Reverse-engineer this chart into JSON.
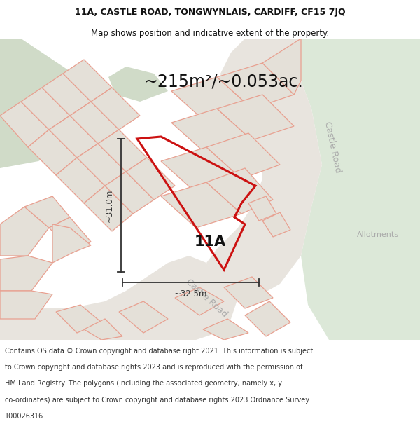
{
  "title_line1": "11A, CASTLE ROAD, TONGWYNLAIS, CARDIFF, CF15 7JQ",
  "title_line2": "Map shows position and indicative extent of the property.",
  "area_text": "~215m²/~0.053ac.",
  "label_11a": "11A",
  "dim_vertical": "~31.0m",
  "dim_horizontal": "~32.5m",
  "castle_road_label1": "Castle Road",
  "castle_road_label2": "Castle Road",
  "allotments_label": "Allotments",
  "footer_lines": [
    "Contains OS data © Crown copyright and database right 2021. This information is subject",
    "to Crown copyright and database rights 2023 and is reproduced with the permission of",
    "HM Land Registry. The polygons (including the associated geometry, namely x, y",
    "co-ordinates) are subject to Crown copyright and database rights 2023 Ordnance Survey",
    "100026316."
  ],
  "map_bg": "#f2eeea",
  "road_color": "#e8e4de",
  "green_color1": "#d0dbc8",
  "green_color2": "#dce8d8",
  "parcel_fill": "#e4e0d8",
  "parcel_edge": "#e8a090",
  "parcel_lw": 0.9,
  "highlight_color": "#cc1111",
  "highlight_lw": 2.2,
  "dim_color": "#333333",
  "text_dark": "#111111",
  "text_gray": "#aaaaaa",
  "footer_color": "#333333",
  "title_fs": 9.0,
  "subtitle_fs": 8.5,
  "area_fs": 17,
  "label_fs": 15,
  "dim_fs": 8.5,
  "road_label_fs": 9.0,
  "allot_fs": 8.0,
  "footer_fs": 7.0
}
